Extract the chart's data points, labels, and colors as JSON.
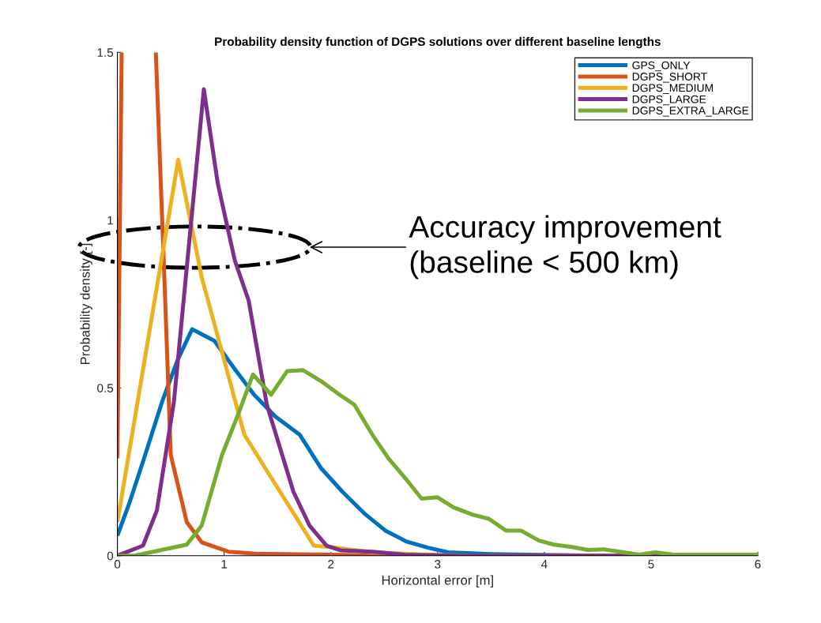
{
  "chart_data": {
    "type": "line",
    "title": "Probability density function of DGPS solutions over different baseline lengths",
    "xlabel": "Horizontal error [m]",
    "ylabel": "Probability density [-]",
    "xlim": [
      0,
      6
    ],
    "ylim": [
      0,
      1.5
    ],
    "xticks": [
      0,
      1,
      2,
      3,
      4,
      5,
      6
    ],
    "yticks": [
      0,
      0.5,
      1,
      1.5
    ],
    "grid": false,
    "legend": "top right",
    "marker": "none",
    "line_style": "solid",
    "annotations": [
      "Accuracy improvement\n(baseline < 500 km)"
    ],
    "series": [
      {
        "name": "GPS_ONLY",
        "color": "#0072bd",
        "x": [
          0,
          0.11,
          0.26,
          0.42,
          0.56,
          0.7,
          0.91,
          1.09,
          1.28,
          1.48,
          1.71,
          1.91,
          2.11,
          2.31,
          2.51,
          2.71,
          2.91,
          3.1,
          3.32,
          3.5,
          4.1,
          4.5,
          6
        ],
        "values": [
          0.06,
          0.155,
          0.3,
          0.46,
          0.58,
          0.675,
          0.64,
          0.56,
          0.48,
          0.415,
          0.36,
          0.26,
          0.19,
          0.127,
          0.075,
          0.042,
          0.024,
          0.01,
          0.007,
          0.005,
          0.002,
          0,
          0
        ]
      },
      {
        "name": "DGPS_SHORT",
        "color": "#d95319",
        "x": [
          0,
          0.04,
          0.2,
          0.36,
          0.44,
          0.5,
          0.65,
          0.79,
          1.04,
          1.3,
          2,
          2.5,
          6
        ],
        "values": [
          0.29,
          1.5,
          null,
          1.5,
          0.83,
          0.3,
          0.1,
          0.04,
          0.012,
          0.006,
          0.003,
          0,
          0
        ]
      },
      {
        "name": "DGPS_MEDIUM",
        "color": "#edb120",
        "x": [
          0,
          0.57,
          0.79,
          1.19,
          1.84,
          2.02,
          2.39,
          2.9,
          3.3,
          6
        ],
        "values": [
          0.1,
          1.18,
          0.83,
          0.36,
          0.03,
          0.025,
          0.01,
          0.003,
          0,
          0
        ]
      },
      {
        "name": "DGPS_LARGE",
        "color": "#7e2f8e",
        "x": [
          0,
          0.24,
          0.37,
          0.53,
          0.81,
          0.94,
          1.1,
          1.23,
          1.4,
          1.65,
          1.8,
          1.96,
          2.09,
          2.39,
          2.69,
          3.2,
          6
        ],
        "values": [
          0,
          0.03,
          0.135,
          0.46,
          1.39,
          1.11,
          0.88,
          0.76,
          0.45,
          0.19,
          0.09,
          0.03,
          0.016,
          0.012,
          0.003,
          0,
          0
        ]
      },
      {
        "name": "DGPS_EXTRA_LARGE",
        "color": "#77ac30",
        "x": [
          0,
          0.16,
          0.65,
          0.79,
          0.98,
          1.13,
          1.27,
          1.44,
          1.59,
          1.74,
          1.91,
          2.08,
          2.22,
          2.39,
          2.54,
          2.7,
          2.85,
          3.0,
          3.15,
          3.33,
          3.48,
          3.64,
          3.78,
          3.95,
          4.09,
          4.26,
          4.41,
          4.56,
          4.89,
          5.04,
          5.21,
          6
        ],
        "values": [
          0,
          0,
          0.033,
          0.09,
          0.3,
          0.42,
          0.54,
          0.48,
          0.55,
          0.553,
          0.52,
          0.48,
          0.45,
          0.36,
          0.29,
          0.23,
          0.17,
          0.174,
          0.144,
          0.122,
          0.11,
          0.075,
          0.075,
          0.045,
          0.033,
          0.026,
          0.017,
          0.019,
          0.003,
          0.01,
          0.003,
          0.003
        ]
      }
    ]
  }
}
